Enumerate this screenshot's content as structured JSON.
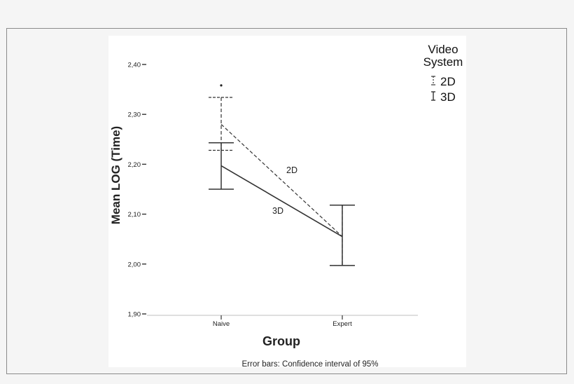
{
  "chart_data": {
    "type": "line",
    "xlabel": "Group",
    "ylabel": "Mean LOG (Time)",
    "categories": [
      "Naive",
      "Expert"
    ],
    "ylim": [
      1.9,
      2.4
    ],
    "yticks": [
      "1,90",
      "2,00",
      "2,10",
      "2,20",
      "2,30",
      "2,40"
    ],
    "ytick_values": [
      1.9,
      2.0,
      2.1,
      2.2,
      2.3,
      2.4
    ],
    "grid": false,
    "legend": {
      "title_line1": "Video",
      "title_line2": "System",
      "placement": "top-right",
      "entries": [
        "2D",
        "3D"
      ]
    },
    "series": [
      {
        "name": "2D",
        "line_style": "dashed",
        "values": [
          2.28,
          2.055
        ],
        "ci_lower": [
          2.228,
          1.997
        ],
        "ci_upper": [
          2.334,
          2.118
        ]
      },
      {
        "name": "3D",
        "line_style": "solid",
        "values": [
          2.197,
          2.055
        ],
        "ci_lower": [
          2.15,
          1.997
        ],
        "ci_upper": [
          2.243,
          2.118
        ]
      }
    ],
    "outliers": [
      {
        "series": "2D",
        "category": "Naive",
        "value": 2.358
      }
    ],
    "footnote": "Error bars: Confidence interval of 95%",
    "colors": {
      "line": "#333333",
      "panel": "#ffffff",
      "background": "#f5f5f5"
    }
  }
}
